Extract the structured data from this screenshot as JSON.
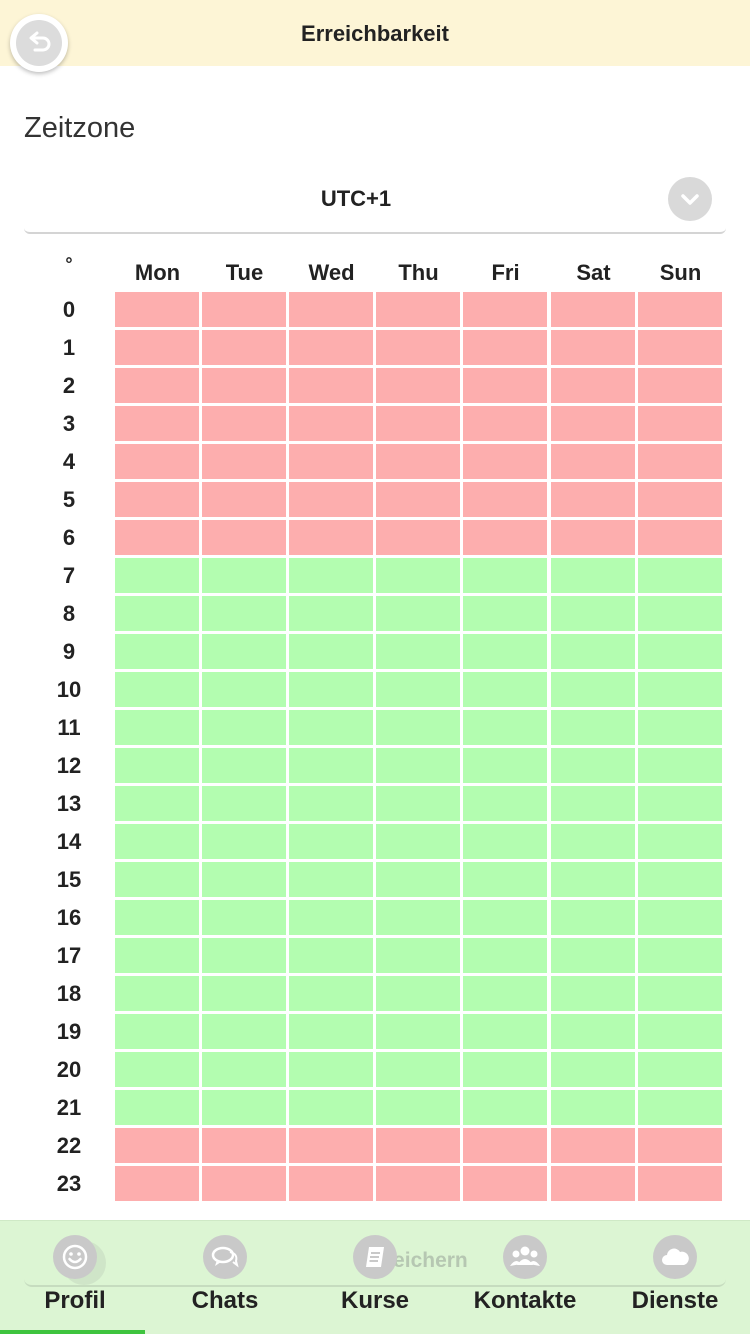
{
  "header": {
    "title": "Erreichbarkeit",
    "back_icon": "undo-arrow-icon"
  },
  "timezone": {
    "label": "Zeitzone",
    "value": "UTC+1"
  },
  "grid": {
    "corner": "°",
    "days": [
      "Mon",
      "Tue",
      "Wed",
      "Thu",
      "Fri",
      "Sat",
      "Sun"
    ],
    "hours": [
      "0",
      "1",
      "2",
      "3",
      "4",
      "5",
      "6",
      "7",
      "8",
      "9",
      "10",
      "11",
      "12",
      "13",
      "14",
      "15",
      "16",
      "17",
      "18",
      "19",
      "20",
      "21",
      "22",
      "23"
    ],
    "availability": [
      0,
      0,
      0,
      0,
      0,
      0,
      0,
      1,
      1,
      1,
      1,
      1,
      1,
      1,
      1,
      1,
      1,
      1,
      1,
      1,
      1,
      1,
      0,
      0
    ],
    "colors": {
      "available": "#b3fdb0",
      "unavailable": "#fdaeae"
    }
  },
  "bottom": {
    "save_label": "Speichern",
    "nav": [
      {
        "label": "Profil",
        "icon": "smiley-icon"
      },
      {
        "label": "Chats",
        "icon": "chat-bubbles-icon"
      },
      {
        "label": "Kurse",
        "icon": "book-icon"
      },
      {
        "label": "Kontakte",
        "icon": "people-icon"
      },
      {
        "label": "Dienste",
        "icon": "cloud-icon"
      }
    ],
    "active_index": 0
  }
}
